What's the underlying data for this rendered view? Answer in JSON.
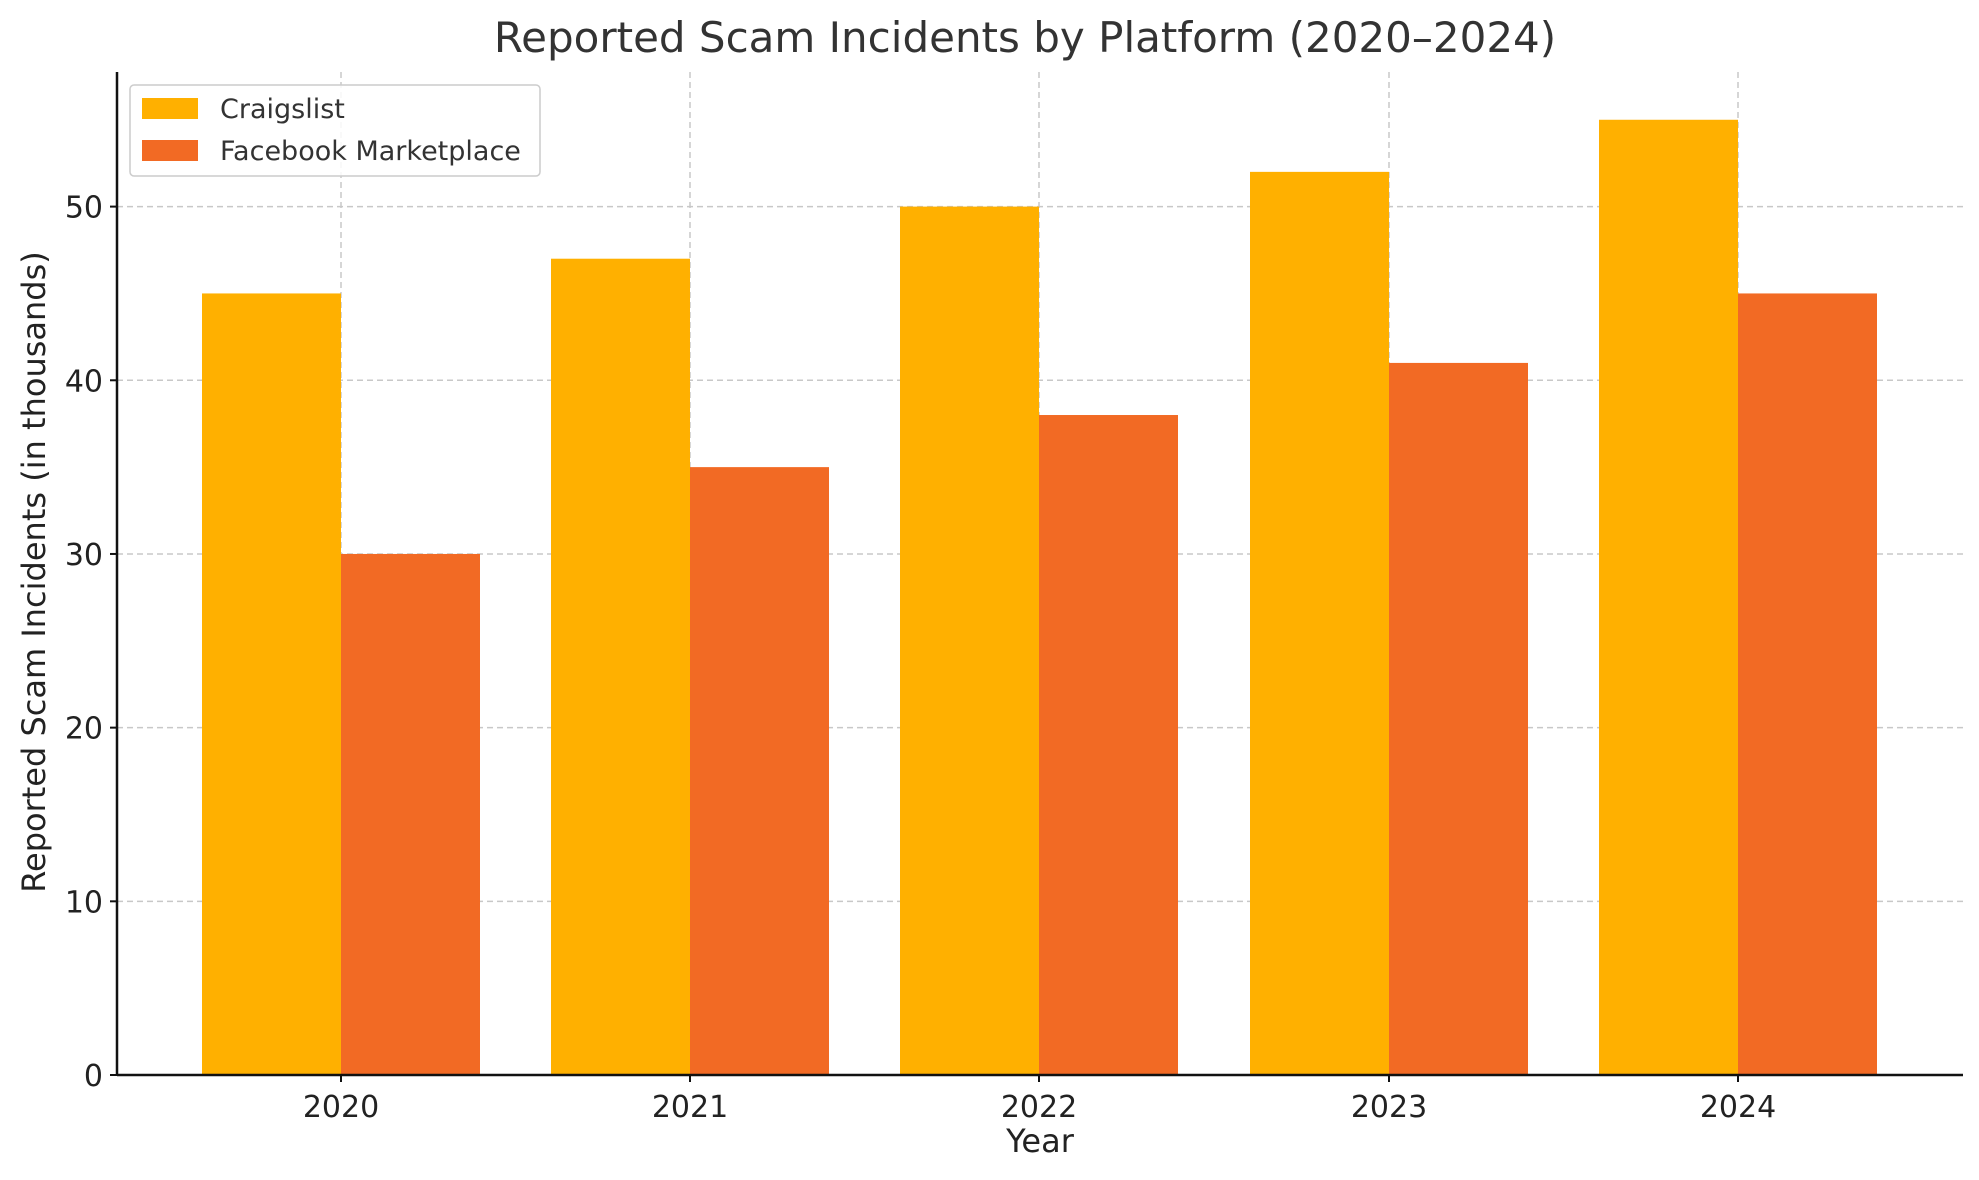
{
  "chart_data": {
    "type": "bar",
    "title": "Reported Scam Incidents by Platform (2020–2024)",
    "xlabel": "Year",
    "ylabel": "Reported Scam Incidents (in thousands)",
    "categories": [
      "2020",
      "2021",
      "2022",
      "2023",
      "2024"
    ],
    "series": [
      {
        "name": "Craigslist",
        "color": "#FFB000",
        "values": [
          45,
          47,
          50,
          52,
          55
        ]
      },
      {
        "name": "Facebook Marketplace",
        "color": "#F26A24",
        "values": [
          30,
          35,
          38,
          41,
          45
        ]
      }
    ],
    "ylim": [
      0,
      57.75
    ],
    "yticks": [
      0,
      10,
      20,
      30,
      40,
      50
    ],
    "grid": true,
    "legend_position": "top-left"
  }
}
